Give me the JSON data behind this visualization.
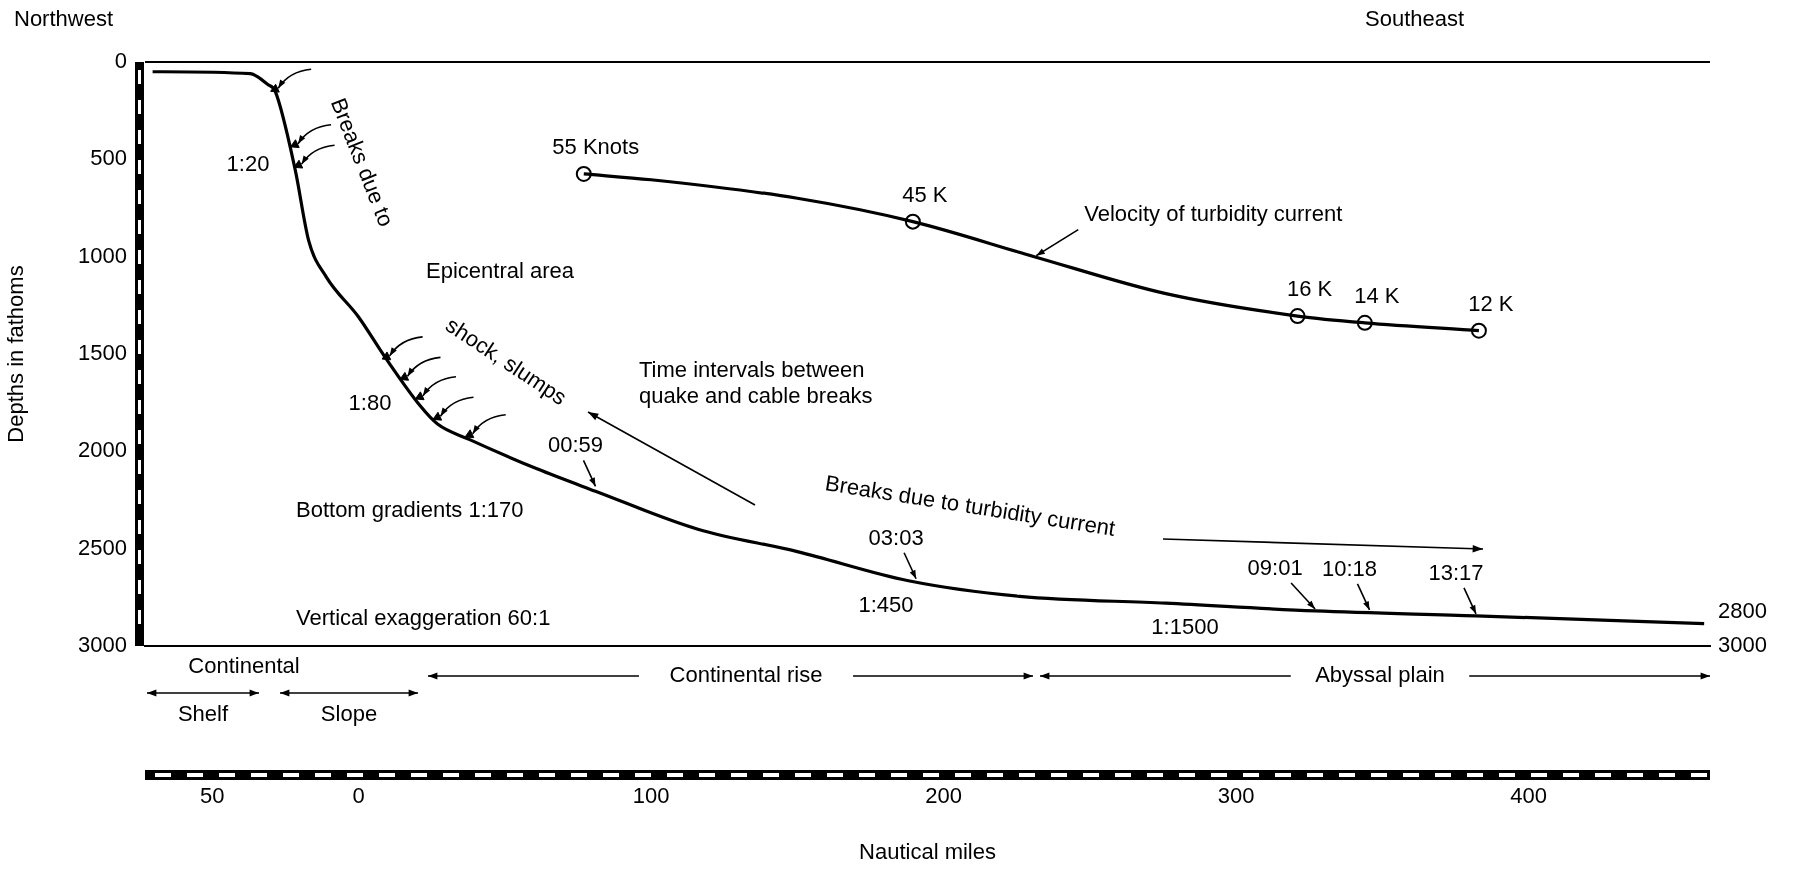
{
  "chart_data": {
    "type": "line",
    "xlabel": "Nautical miles",
    "ylabel": "Depths in fathoms",
    "xlim": [
      -73,
      462
    ],
    "xticks": [
      {
        "value": -50,
        "label": "50"
      },
      0,
      100,
      200,
      300,
      400
    ],
    "ylim": [
      3000,
      0
    ],
    "yticks": [
      0,
      500,
      1000,
      1500,
      2000,
      2500,
      3000
    ],
    "grid": false,
    "legend": false,
    "ref_lines": [
      {
        "axis": "y",
        "value": 0,
        "color": "#000000"
      }
    ],
    "series": [
      {
        "type": "line",
        "color": "#000000",
        "marker": "none",
        "x": [
          -70.4,
          -37,
          -31,
          -28.5,
          -21.7,
          -17,
          -11,
          0,
          9,
          21,
          27,
          38,
          61,
          81,
          116,
          150,
          188,
          226,
          276,
          327,
          382,
          460
        ],
        "values": [
          50,
          60,
          116,
          150,
          550,
          920,
          1105,
          1310,
          1515,
          1765,
          1860,
          1940,
          2090,
          2205,
          2400,
          2515,
          2665,
          2745,
          2780,
          2820,
          2845,
          2885
        ]
      },
      {
        "type": "line",
        "color": "#000000",
        "marker": "none",
        "x": [
          77,
          100,
          150,
          189.5,
          231,
          276,
          321,
          344,
          383
        ],
        "values": [
          575,
          605,
          700,
          820,
          1000,
          1190,
          1305,
          1340,
          1380
        ]
      },
      {
        "type": "scatter",
        "color": "#000000",
        "marker": "circle",
        "x": [
          77,
          189.5,
          321,
          344,
          383
        ],
        "values": [
          575,
          820,
          1305,
          1340,
          1380
        ]
      },
      {
        "type": "scatter",
        "color": "#000000",
        "marker": "triangle",
        "x": [
          -28.5,
          -21.7,
          -20.5,
          9.6,
          15.7,
          21,
          27,
          38
        ],
        "values": [
          140,
          425,
          530,
          1515,
          1620,
          1720,
          1825,
          1915
        ]
      }
    ],
    "annotations": [
      "Northwest",
      "Southeast",
      {
        "text": "Breaks due to",
        "x": -21.7,
        "y": 425
      },
      {
        "text": "shock, slumps",
        "x": 27,
        "y": 1825
      },
      "Epicentral area",
      "Time intervals between\nquake and cable breaks",
      "Breaks due to turbidity current",
      "Bottom gradients 1:170",
      "Vertical exaggeration 60:1",
      {
        "text": "Velocity of turbidity current",
        "x": 231,
        "y": 1000
      },
      "Continental",
      "Shelf",
      "Slope",
      "Continental rise",
      "Abyssal plain",
      "1:20",
      "1:80",
      "1:450",
      "1:1500",
      {
        "text": "00:59",
        "x": 81,
        "y": 2190
      },
      {
        "text": "03:03",
        "x": 190.6,
        "y": 2665
      },
      {
        "text": "09:01",
        "x": 327,
        "y": 2820
      },
      {
        "text": "10:18",
        "x": 345.6,
        "y": 2825
      },
      {
        "text": "13:17",
        "x": 382,
        "y": 2845
      },
      {
        "text": "55 Knots",
        "x": 77,
        "y": 575
      },
      {
        "text": "45 K",
        "x": 189.5,
        "y": 820
      },
      {
        "text": "16 K",
        "x": 321,
        "y": 1305
      },
      {
        "text": "14 K",
        "x": 344,
        "y": 1340
      },
      {
        "text": "12 K",
        "x": 383,
        "y": 1380
      },
      "2800",
      "3000"
    ]
  }
}
